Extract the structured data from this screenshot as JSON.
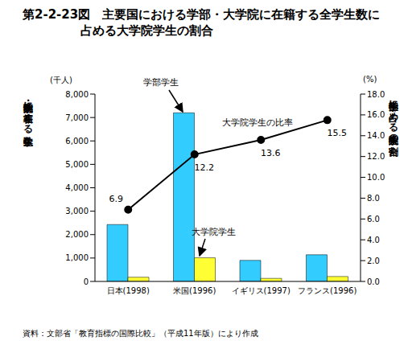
{
  "chart_data": {
    "type": "bar",
    "title": "第2-2-23図　主要国における学部・大学院に在籍する全学生数に\n占める大学院学生の割合",
    "categories": [
      "日本(1998)",
      "米国(1996)",
      "イギリス(1997)",
      "フランス(1996)"
    ],
    "series": [
      {
        "name": "学部学生",
        "type": "bar",
        "color": "#33ccff",
        "values": [
          2430,
          7200,
          900,
          1140
        ]
      },
      {
        "name": "大学院学生",
        "type": "bar",
        "color": "#ffff33",
        "values": [
          180,
          1010,
          130,
          210
        ]
      },
      {
        "name": "大学院学生の比率",
        "type": "line",
        "axis": "y2",
        "color": "#000000",
        "marker": "circle",
        "data_labels": true,
        "values": [
          6.9,
          12.2,
          13.6,
          15.5
        ]
      }
    ],
    "y_label": "学部・大学院に在籍する学生数",
    "y_unit": "(千人)",
    "y2_label": "学部学生に占める大学院学生の割合",
    "y2_unit": "(%)",
    "ylim": [
      0,
      8000
    ],
    "yticks": [
      0,
      {
        "value": 1000,
        "label": "1,000"
      },
      {
        "value": 2000,
        "label": "2,000"
      },
      {
        "value": 3000,
        "label": "3,000"
      },
      {
        "value": 4000,
        "label": "4,000"
      },
      {
        "value": 5000,
        "label": "5,000"
      },
      {
        "value": 6000,
        "label": "6,000"
      },
      {
        "value": 7000,
        "label": "7,000"
      },
      {
        "value": 8000,
        "label": "8,000"
      }
    ],
    "y2lim": [
      0,
      18
    ],
    "y2ticks": [
      {
        "value": 0,
        "label": "0.0"
      },
      {
        "value": 2,
        "label": "2.0"
      },
      {
        "value": 4,
        "label": "4.0"
      },
      {
        "value": 6,
        "label": "6.0"
      },
      {
        "value": 8,
        "label": "8.0"
      },
      {
        "value": 10,
        "label": "10.0"
      },
      {
        "value": 12,
        "label": "12.0"
      },
      {
        "value": 14,
        "label": "14.0"
      },
      {
        "value": 16,
        "label": "16.0"
      },
      {
        "value": 18,
        "label": "18.0"
      }
    ],
    "note": "資料：文部省「教育指標の国際比較」（平成11年版）により作成"
  }
}
